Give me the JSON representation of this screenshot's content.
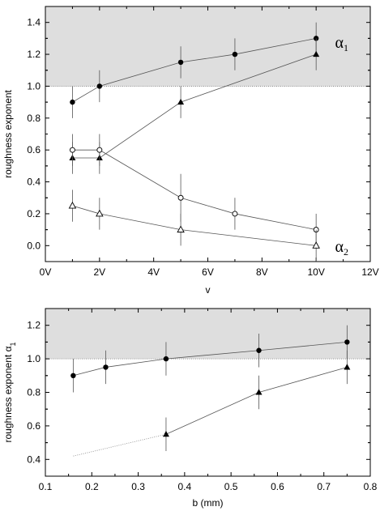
{
  "chart_data": [
    {
      "type": "scatter",
      "title": "",
      "xlabel": "v",
      "ylabel": "roughness exponent",
      "xlim": [
        0,
        12
      ],
      "ylim": [
        -0.1,
        1.5
      ],
      "xticks": [
        0,
        2,
        4,
        6,
        8,
        10,
        12
      ],
      "xtick_labels": [
        "0V",
        "2V",
        "4V",
        "6V",
        "8V",
        "10V",
        "12V"
      ],
      "yticks": [
        0.0,
        0.2,
        0.4,
        0.6,
        0.8,
        1.0,
        1.2,
        1.4
      ],
      "ytick_labels": [
        "0.0",
        "0.2",
        "0.4",
        "0.6",
        "0.8",
        "1.0",
        "1.2",
        "1.4"
      ],
      "shaded_region": {
        "y_from": 1.0,
        "y_to": 1.5,
        "color": "#dedede"
      },
      "reference_line": {
        "y": 1.0,
        "style": "dotted"
      },
      "grid": false,
      "series": [
        {
          "marker": "circle-filled",
          "x": [
            1,
            2,
            5,
            7,
            10
          ],
          "y": [
            0.9,
            1.0,
            1.15,
            1.2,
            1.3
          ],
          "err": [
            0.1,
            0.1,
            0.1,
            0.1,
            0.1
          ]
        },
        {
          "marker": "triangle-filled",
          "x": [
            1,
            2,
            5,
            10
          ],
          "y": [
            0.55,
            0.55,
            0.9,
            1.2
          ],
          "err": [
            0.1,
            0.1,
            0.1,
            0.1
          ]
        },
        {
          "marker": "circle-open",
          "x": [
            1,
            2,
            5,
            7,
            10
          ],
          "y": [
            0.6,
            0.6,
            0.3,
            0.2,
            0.1
          ],
          "err": [
            0.1,
            0.1,
            0.15,
            0.1,
            0.1
          ]
        },
        {
          "marker": "triangle-open",
          "x": [
            1,
            2,
            5,
            10
          ],
          "y": [
            0.25,
            0.2,
            0.1,
            0.0
          ],
          "err": [
            0.1,
            0.1,
            0.1,
            0.1
          ]
        }
      ],
      "annotations": [
        {
          "symbol": "α",
          "sub": "1",
          "x": 10.7,
          "y": 1.24
        },
        {
          "symbol": "α",
          "sub": "2",
          "x": 10.7,
          "y": -0.04
        }
      ]
    },
    {
      "type": "scatter",
      "title": "",
      "xlabel": "b (mm)",
      "ylabel": "roughness exponent α",
      "ylabel_sub": "1",
      "xlim": [
        0.1,
        0.8
      ],
      "ylim": [
        0.3,
        1.3
      ],
      "xticks": [
        0.1,
        0.2,
        0.3,
        0.4,
        0.5,
        0.6,
        0.7,
        0.8
      ],
      "xtick_labels": [
        "0.1",
        "0.2",
        "0.3",
        "0.4",
        "0.5",
        "0.6",
        "0.7",
        "0.8"
      ],
      "yticks": [
        0.4,
        0.6,
        0.8,
        1.0,
        1.2
      ],
      "ytick_labels": [
        "0.4",
        "0.6",
        "0.8",
        "1.0",
        "1.2"
      ],
      "shaded_region": {
        "y_from": 1.0,
        "y_to": 1.3,
        "color": "#dedede"
      },
      "reference_line": {
        "y": 1.0,
        "style": "dotted"
      },
      "grid": false,
      "series": [
        {
          "marker": "circle-filled",
          "x": [
            0.16,
            0.23,
            0.36,
            0.56,
            0.75
          ],
          "y": [
            0.9,
            0.95,
            1.0,
            1.05,
            1.1
          ],
          "err": [
            0.1,
            0.1,
            0.1,
            0.1,
            0.1
          ]
        },
        {
          "marker": "triangle-filled",
          "x": [
            0.36,
            0.56,
            0.75
          ],
          "y": [
            0.55,
            0.8,
            0.95
          ],
          "err": [
            0.1,
            0.1,
            0.1
          ]
        },
        {
          "marker": "none",
          "style": "dotted",
          "x": [
            0.16,
            0.36
          ],
          "y": [
            0.42,
            0.55
          ],
          "err": []
        }
      ],
      "annotations": []
    }
  ]
}
